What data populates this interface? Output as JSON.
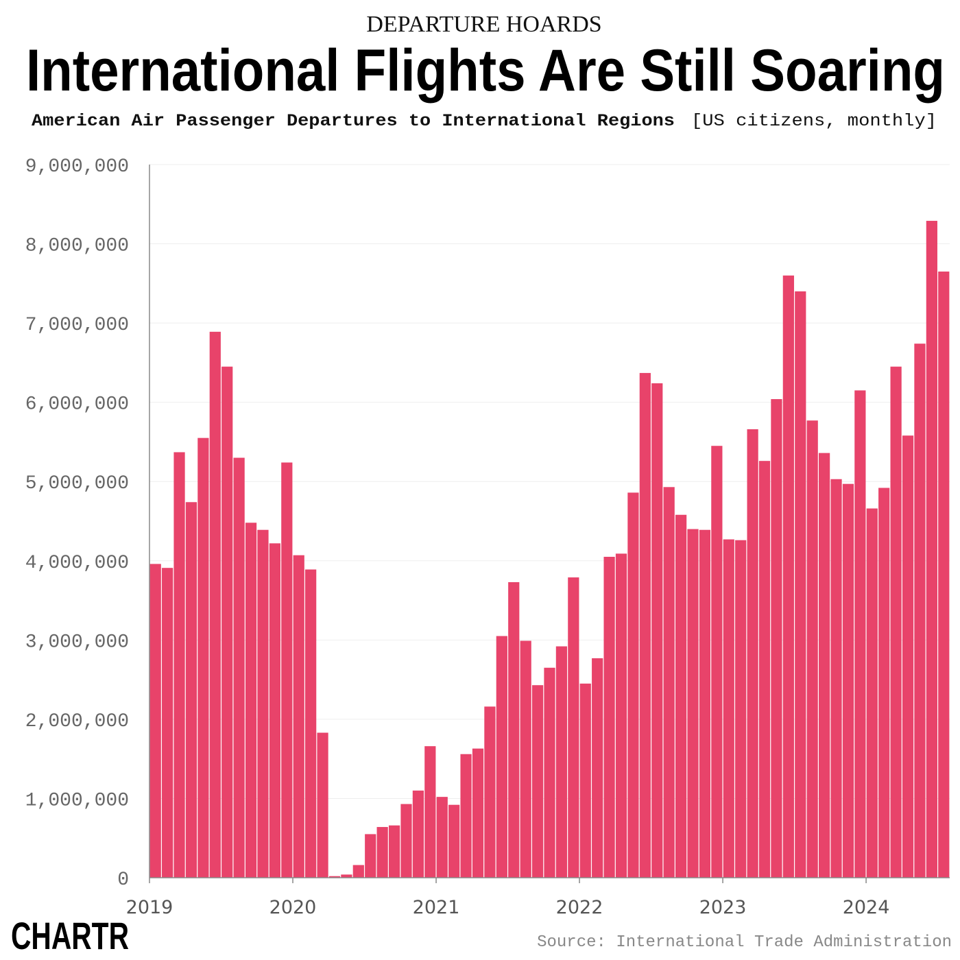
{
  "chart_data": {
    "type": "bar",
    "kicker": "DEPARTURE HOARDS",
    "title": "International Flights Are Still Soaring",
    "subtitle": "American Air Passenger Departures to International Regions",
    "subtitle_note": "[US citizens, monthly]",
    "source": "Source: International Trade Administration",
    "brand": "CHARTR",
    "color": "#e8436a",
    "grid": true,
    "ylim": [
      0,
      9000000
    ],
    "yticks": [
      0,
      {
        "value": 1000000,
        "label": "1,000,000"
      },
      {
        "value": 2000000,
        "label": "2,000,000"
      },
      {
        "value": 3000000,
        "label": "3,000,000"
      },
      {
        "value": 4000000,
        "label": "4,000,000"
      },
      {
        "value": 5000000,
        "label": "5,000,000"
      },
      {
        "value": 6000000,
        "label": "6,000,000"
      },
      {
        "value": 7000000,
        "label": "7,000,000"
      },
      {
        "value": 8000000,
        "label": "8,000,000"
      },
      {
        "value": 9000000,
        "label": "9,000,000"
      }
    ],
    "categories": [
      "2019",
      null,
      null,
      null,
      null,
      null,
      null,
      null,
      null,
      null,
      null,
      null,
      "2020",
      null,
      null,
      null,
      null,
      null,
      null,
      null,
      null,
      null,
      null,
      null,
      "2021",
      null,
      null,
      null,
      null,
      null,
      null,
      null,
      null,
      null,
      null,
      null,
      "2022",
      null,
      null,
      null,
      null,
      null,
      null,
      null,
      null,
      null,
      null,
      null,
      "2023",
      null,
      null,
      null,
      null,
      null,
      null,
      null,
      null,
      null,
      null,
      null,
      "2024",
      null,
      null,
      null,
      null,
      null,
      null
    ],
    "values": [
      3960000,
      3910000,
      5370000,
      4740000,
      5550000,
      6890000,
      6450000,
      5300000,
      4480000,
      4390000,
      4220000,
      5240000,
      4070000,
      3890000,
      1830000,
      20000,
      40000,
      160000,
      550000,
      640000,
      660000,
      930000,
      1100000,
      1660000,
      1020000,
      920000,
      1560000,
      1630000,
      2160000,
      3050000,
      3730000,
      2990000,
      2430000,
      2650000,
      2920000,
      3790000,
      2450000,
      2770000,
      4050000,
      4090000,
      4860000,
      6370000,
      6240000,
      4930000,
      4580000,
      4400000,
      4390000,
      5450000,
      4270000,
      4260000,
      5660000,
      5260000,
      6040000,
      7600000,
      7400000,
      5770000,
      5360000,
      5030000,
      4970000,
      6150000,
      4660000,
      4920000,
      6450000,
      5580000,
      6740000,
      8290000,
      7650000
    ]
  }
}
